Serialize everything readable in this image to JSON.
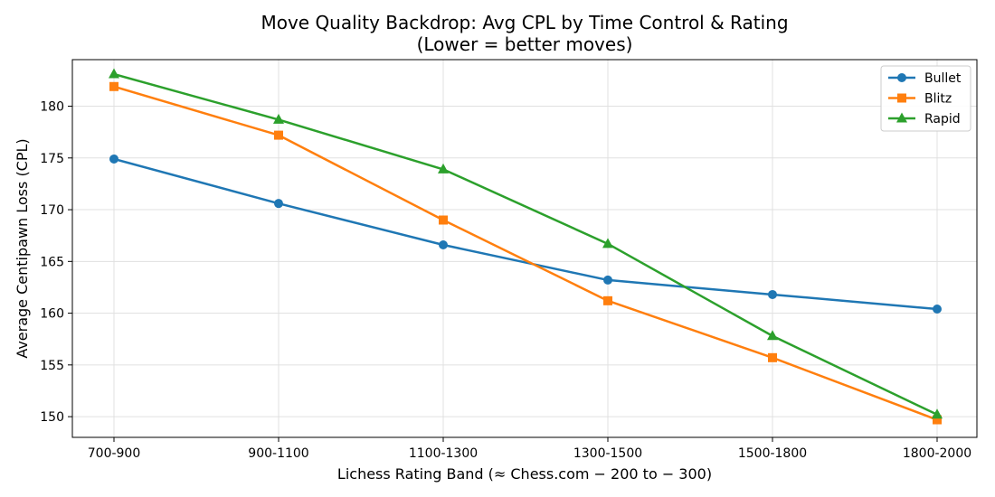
{
  "chart_data": {
    "type": "line",
    "title": "Move Quality Backdrop: Avg CPL by Time Control & Rating",
    "subtitle": "(Lower = better moves)",
    "xlabel": "Lichess Rating Band  (≈ Chess.com − 200 to − 300)",
    "ylabel": "Average Centipawn Loss (CPL)",
    "categories": [
      "700-900",
      "900-1100",
      "1100-1300",
      "1300-1500",
      "1500-1800",
      "1800-2000"
    ],
    "ylim": [
      148,
      184.5
    ],
    "yticks": [
      150,
      155,
      160,
      165,
      170,
      175,
      180
    ],
    "grid": true,
    "legend_position": "top-right",
    "series": [
      {
        "name": "Bullet",
        "color": "#1f77b4",
        "marker": "circle",
        "values": [
          174.9,
          170.6,
          166.6,
          163.2,
          161.8,
          160.4
        ]
      },
      {
        "name": "Blitz",
        "color": "#ff7f0e",
        "marker": "square",
        "values": [
          181.9,
          177.2,
          169.0,
          161.2,
          155.7,
          149.7
        ]
      },
      {
        "name": "Rapid",
        "color": "#2ca02c",
        "marker": "triangle",
        "values": [
          183.1,
          178.7,
          173.9,
          166.7,
          157.8,
          150.2
        ]
      }
    ]
  }
}
